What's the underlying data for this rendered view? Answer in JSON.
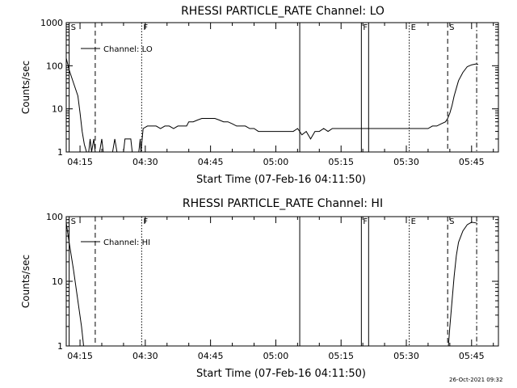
{
  "footer": {
    "timestamp": "26-Oct-2021 09:32"
  },
  "chart_data": [
    {
      "type": "line",
      "title": "RHESSI PARTICLE_RATE Channel: LO",
      "xlabel": "Start Time (07-Feb-16 04:11:50)",
      "ylabel": "Counts/sec",
      "legend": {
        "label": "Channel: LO",
        "placement": "top-left"
      },
      "yscale": "log",
      "xlim": [
        "04:11:50",
        "05:51:10"
      ],
      "ylim": [
        1,
        1000
      ],
      "x_ticks": [
        "04:15",
        "04:30",
        "04:45",
        "05:00",
        "05:15",
        "05:30",
        "05:45"
      ],
      "y_ticks": [
        "1",
        "10",
        "100",
        "1000"
      ],
      "markers": [
        {
          "time": "04:12:30",
          "style": "solid",
          "label": "S"
        },
        {
          "time": "04:18:30",
          "style": "dashed",
          "label": ""
        },
        {
          "time": "04:29:10",
          "style": "dotted",
          "label": "F"
        },
        {
          "time": "05:05:30",
          "style": "solid",
          "label": ""
        },
        {
          "time": "05:19:40",
          "style": "solid",
          "label": "F"
        },
        {
          "time": "05:21:20",
          "style": "solid",
          "label": ""
        },
        {
          "time": "05:30:40",
          "style": "dotted",
          "label": "E"
        },
        {
          "time": "05:39:30",
          "style": "dashed",
          "label": "S"
        },
        {
          "time": "05:46:10",
          "style": "dashdot",
          "label": ""
        }
      ],
      "series": [
        {
          "name": "Channel: LO",
          "points": [
            [
              "04:11:50",
              150
            ],
            [
              "04:12:30",
              80
            ],
            [
              "04:13:30",
              40
            ],
            [
              "04:14:30",
              20
            ],
            [
              "04:15:00",
              8
            ],
            [
              "04:15:30",
              3
            ],
            [
              "04:16:00",
              1.5
            ],
            [
              "04:16:30",
              1
            ],
            [
              "04:17:00",
              1
            ],
            [
              "04:17:20",
              2
            ],
            [
              "04:17:40",
              1
            ],
            [
              "04:18:10",
              2
            ],
            [
              "04:18:30",
              1
            ],
            [
              "04:19:30",
              1
            ],
            [
              "04:20:00",
              2
            ],
            [
              "04:20:20",
              1
            ],
            [
              "04:21:00",
              1
            ],
            [
              "04:22:30",
              1
            ],
            [
              "04:23:00",
              2
            ],
            [
              "04:23:30",
              1
            ],
            [
              "04:25:00",
              1
            ],
            [
              "04:25:20",
              2
            ],
            [
              "04:26:40",
              2
            ],
            [
              "04:27:00",
              1
            ],
            [
              "04:28:30",
              1
            ],
            [
              "04:28:50",
              2
            ],
            [
              "04:29:00",
              1
            ],
            [
              "04:29:30",
              3.5
            ],
            [
              "04:30:30",
              4
            ],
            [
              "04:31:30",
              4
            ],
            [
              "04:32:30",
              4
            ],
            [
              "04:33:30",
              3.5
            ],
            [
              "04:34:30",
              4
            ],
            [
              "04:35:30",
              4
            ],
            [
              "04:36:30",
              3.5
            ],
            [
              "04:37:30",
              4
            ],
            [
              "04:38:30",
              4
            ],
            [
              "04:39:30",
              4
            ],
            [
              "04:40:00",
              5
            ],
            [
              "04:41:00",
              5
            ],
            [
              "04:42:00",
              5.5
            ],
            [
              "04:43:00",
              6
            ],
            [
              "04:44:00",
              6
            ],
            [
              "04:45:00",
              6
            ],
            [
              "04:46:00",
              6
            ],
            [
              "04:47:00",
              5.5
            ],
            [
              "04:48:00",
              5
            ],
            [
              "04:49:00",
              5
            ],
            [
              "04:50:00",
              4.5
            ],
            [
              "04:51:00",
              4
            ],
            [
              "04:52:00",
              4
            ],
            [
              "04:53:00",
              4
            ],
            [
              "04:54:00",
              3.5
            ],
            [
              "04:55:00",
              3.5
            ],
            [
              "04:56:00",
              3
            ],
            [
              "04:57:00",
              3
            ],
            [
              "04:58:00",
              3
            ],
            [
              "04:59:00",
              3
            ],
            [
              "05:00:00",
              3
            ],
            [
              "05:01:00",
              3
            ],
            [
              "05:02:00",
              3
            ],
            [
              "05:03:00",
              3
            ],
            [
              "05:04:00",
              3
            ],
            [
              "05:05:00",
              3.5
            ],
            [
              "05:05:30",
              3
            ],
            [
              "05:06:00",
              2.5
            ],
            [
              "05:07:00",
              3
            ],
            [
              "05:08:00",
              2
            ],
            [
              "05:09:00",
              3
            ],
            [
              "05:10:00",
              3
            ],
            [
              "05:11:00",
              3.5
            ],
            [
              "05:12:00",
              3
            ],
            [
              "05:13:00",
              3.5
            ],
            [
              "05:14:00",
              3.5
            ],
            [
              "05:15:00",
              3.5
            ],
            [
              "05:16:00",
              3.5
            ],
            [
              "05:17:00",
              3.5
            ],
            [
              "05:18:00",
              3.5
            ],
            [
              "05:19:00",
              3.5
            ],
            [
              "05:20:00",
              3.5
            ],
            [
              "05:21:00",
              3.5
            ],
            [
              "05:22:00",
              3.5
            ],
            [
              "05:23:00",
              3.5
            ],
            [
              "05:24:00",
              3.5
            ],
            [
              "05:25:00",
              3.5
            ],
            [
              "05:26:00",
              3.5
            ],
            [
              "05:27:00",
              3.5
            ],
            [
              "05:28:00",
              3.5
            ],
            [
              "05:29:00",
              3.5
            ],
            [
              "05:30:00",
              3.5
            ],
            [
              "05:31:00",
              3.5
            ],
            [
              "05:32:00",
              3.5
            ],
            [
              "05:33:00",
              3.5
            ],
            [
              "05:34:00",
              3.5
            ],
            [
              "05:35:00",
              3.5
            ],
            [
              "05:36:00",
              4
            ],
            [
              "05:37:00",
              4
            ],
            [
              "05:38:00",
              4.5
            ],
            [
              "05:39:00",
              5
            ],
            [
              "05:39:30",
              6
            ],
            [
              "05:40:00",
              8
            ],
            [
              "05:40:30",
              12
            ],
            [
              "05:41:00",
              20
            ],
            [
              "05:41:30",
              30
            ],
            [
              "05:42:00",
              45
            ],
            [
              "05:43:00",
              70
            ],
            [
              "05:44:00",
              95
            ],
            [
              "05:45:00",
              105
            ],
            [
              "05:46:00",
              110
            ],
            [
              "05:46:30",
              108
            ]
          ]
        }
      ]
    },
    {
      "type": "line",
      "title": "RHESSI PARTICLE_RATE Channel: HI",
      "xlabel": "Start Time (07-Feb-16 04:11:50)",
      "ylabel": "Counts/sec",
      "legend": {
        "label": "Channel: HI",
        "placement": "top-left"
      },
      "yscale": "log",
      "xlim": [
        "04:11:50",
        "05:51:10"
      ],
      "ylim": [
        1,
        100
      ],
      "x_ticks": [
        "04:15",
        "04:30",
        "04:45",
        "05:00",
        "05:15",
        "05:30",
        "05:45"
      ],
      "y_ticks": [
        "1",
        "10",
        "100"
      ],
      "markers": [
        {
          "time": "04:12:30",
          "style": "solid",
          "label": "S"
        },
        {
          "time": "04:18:30",
          "style": "dashed",
          "label": ""
        },
        {
          "time": "04:29:10",
          "style": "dotted",
          "label": "F"
        },
        {
          "time": "05:05:30",
          "style": "solid",
          "label": ""
        },
        {
          "time": "05:19:40",
          "style": "solid",
          "label": "F"
        },
        {
          "time": "05:21:20",
          "style": "solid",
          "label": ""
        },
        {
          "time": "05:30:40",
          "style": "dotted",
          "label": "E"
        },
        {
          "time": "05:39:30",
          "style": "dashed",
          "label": "S"
        },
        {
          "time": "05:46:10",
          "style": "dashdot",
          "label": ""
        }
      ],
      "series": [
        {
          "name": "Channel: HI",
          "points": [
            [
              "04:11:50",
              80
            ],
            [
              "04:12:30",
              40
            ],
            [
              "04:13:30",
              15
            ],
            [
              "04:14:30",
              5
            ],
            [
              "04:15:20",
              2
            ],
            [
              "04:15:50",
              1
            ],
            [
              "05:39:40",
              1
            ],
            [
              "05:40:00",
              2
            ],
            [
              "05:40:30",
              5
            ],
            [
              "05:41:00",
              12
            ],
            [
              "05:41:30",
              25
            ],
            [
              "05:42:00",
              40
            ],
            [
              "05:43:00",
              60
            ],
            [
              "05:44:00",
              75
            ],
            [
              "05:45:00",
              82
            ],
            [
              "05:46:00",
              80
            ],
            [
              "05:46:20",
              78
            ]
          ]
        }
      ]
    }
  ]
}
